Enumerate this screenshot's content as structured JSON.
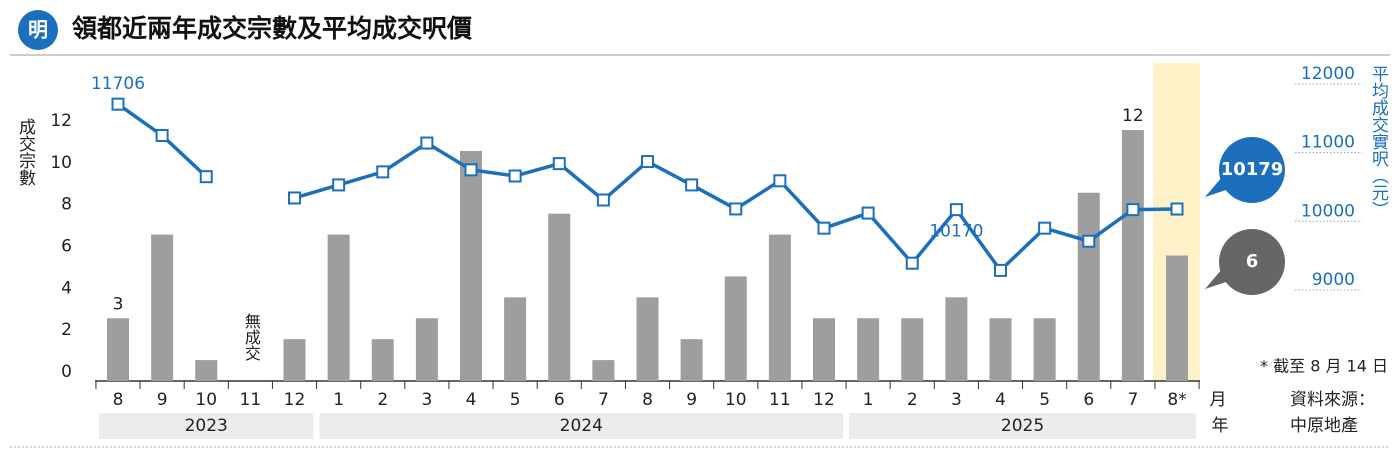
{
  "chart_data": {
    "type": "combo",
    "logo": "明",
    "title": "領都近兩年成交宗數及平均成交呎價",
    "ylabel": "成交宗數",
    "y2label": "平均成交實呎（元）",
    "xlabel": "月",
    "x2label": "年",
    "categories": [
      "8",
      "9",
      "10",
      "11",
      "12",
      "1",
      "2",
      "3",
      "4",
      "5",
      "6",
      "7",
      "8",
      "9",
      "10",
      "11",
      "12",
      "1",
      "2",
      "3",
      "4",
      "5",
      "6",
      "7",
      "8*"
    ],
    "years": [
      "2023",
      "2024",
      "2025"
    ],
    "annotation": "無成交",
    "note": "* 截至 8 月 14 日",
    "source": [
      "資料來源：",
      "中原地產"
    ],
    "series": [
      {
        "type": "bar",
        "color": "#9e9e9e",
        "values": [
          3,
          7,
          1,
          0,
          2,
          7,
          2,
          3,
          11,
          4,
          8,
          1,
          4,
          2,
          5,
          7,
          3,
          3,
          3,
          4,
          3,
          3,
          9,
          12,
          6
        ]
      },
      {
        "type": "line",
        "axis": "y2",
        "color": "#1b6fbd",
        "values": [
          11706,
          11250,
          10650,
          null,
          10340,
          10530,
          10720,
          11140,
          10750,
          10660,
          10840,
          10310,
          10870,
          10530,
          10180,
          10590,
          9900,
          10120,
          9390,
          10170,
          9285,
          9900,
          9710,
          10170,
          10179
        ]
      }
    ],
    "ylim": [
      0,
      14.2
    ],
    "yticks": [
      0,
      2,
      4,
      6,
      8,
      10,
      12
    ],
    "y2lim": [
      7674,
      12000
    ],
    "y2ticks": [
      9000,
      10000,
      11000,
      12000
    ]
  }
}
